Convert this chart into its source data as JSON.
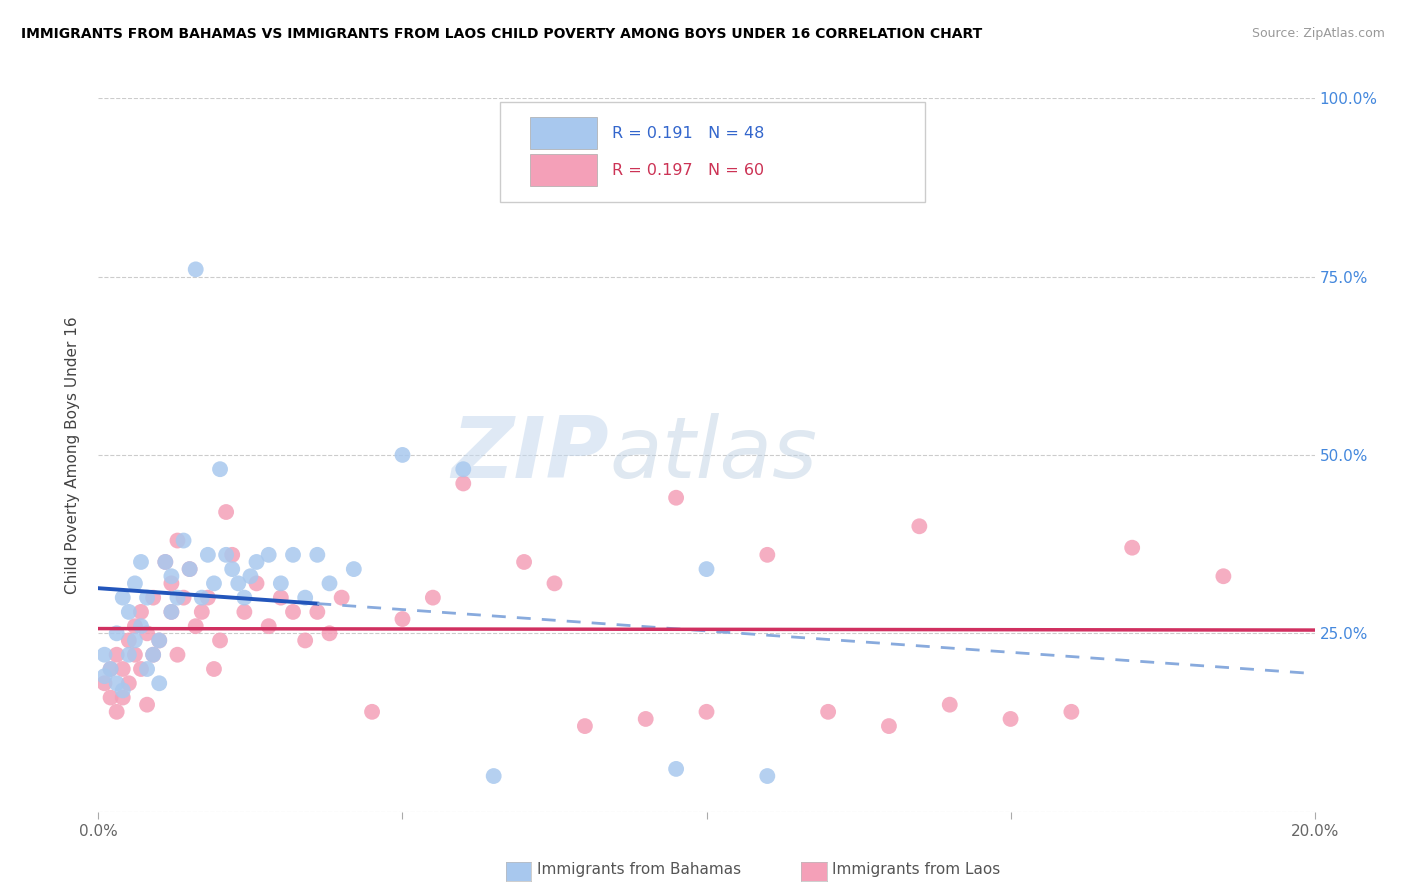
{
  "title": "IMMIGRANTS FROM BAHAMAS VS IMMIGRANTS FROM LAOS CHILD POVERTY AMONG BOYS UNDER 16 CORRELATION CHART",
  "source": "Source: ZipAtlas.com",
  "ylabel": "Child Poverty Among Boys Under 16",
  "x_min": 0.0,
  "x_max": 0.2,
  "y_min": 0.0,
  "y_max": 1.0,
  "x_ticks": [
    0.0,
    0.05,
    0.1,
    0.15,
    0.2
  ],
  "x_tick_labels": [
    "0.0%",
    "",
    "",
    "",
    "20.0%"
  ],
  "y_ticks": [
    0.0,
    0.25,
    0.5,
    0.75,
    1.0
  ],
  "right_y_tick_labels": [
    "",
    "25.0%",
    "50.0%",
    "75.0%",
    "100.0%"
  ],
  "bahamas_color": "#a8c8ee",
  "laos_color": "#f4a0b8",
  "bahamas_line_color": "#2255bb",
  "bahamas_dash_color": "#88aadd",
  "laos_line_color": "#d03060",
  "bahamas_R": 0.191,
  "bahamas_N": 48,
  "laos_R": 0.197,
  "laos_N": 60,
  "watermark_zip": "ZIP",
  "watermark_atlas": "atlas",
  "legend_label_bahamas": "Immigrants from Bahamas",
  "legend_label_laos": "Immigrants from Laos",
  "bahamas_x": [
    0.001,
    0.001,
    0.002,
    0.003,
    0.003,
    0.004,
    0.004,
    0.005,
    0.005,
    0.006,
    0.006,
    0.007,
    0.007,
    0.008,
    0.008,
    0.009,
    0.01,
    0.01,
    0.011,
    0.012,
    0.012,
    0.013,
    0.014,
    0.015,
    0.016,
    0.017,
    0.018,
    0.019,
    0.02,
    0.021,
    0.022,
    0.023,
    0.024,
    0.025,
    0.026,
    0.028,
    0.03,
    0.032,
    0.034,
    0.036,
    0.038,
    0.042,
    0.05,
    0.06,
    0.065,
    0.095,
    0.1,
    0.11
  ],
  "bahamas_y": [
    0.22,
    0.19,
    0.2,
    0.18,
    0.25,
    0.17,
    0.3,
    0.22,
    0.28,
    0.24,
    0.32,
    0.26,
    0.35,
    0.2,
    0.3,
    0.22,
    0.24,
    0.18,
    0.35,
    0.28,
    0.33,
    0.3,
    0.38,
    0.34,
    0.76,
    0.3,
    0.36,
    0.32,
    0.48,
    0.36,
    0.34,
    0.32,
    0.3,
    0.33,
    0.35,
    0.36,
    0.32,
    0.36,
    0.3,
    0.36,
    0.32,
    0.34,
    0.5,
    0.48,
    0.05,
    0.06,
    0.34,
    0.05
  ],
  "laos_x": [
    0.001,
    0.002,
    0.002,
    0.003,
    0.003,
    0.004,
    0.004,
    0.005,
    0.005,
    0.006,
    0.006,
    0.007,
    0.007,
    0.008,
    0.008,
    0.009,
    0.009,
    0.01,
    0.011,
    0.012,
    0.012,
    0.013,
    0.013,
    0.014,
    0.015,
    0.016,
    0.017,
    0.018,
    0.019,
    0.02,
    0.021,
    0.022,
    0.024,
    0.026,
    0.028,
    0.03,
    0.032,
    0.034,
    0.036,
    0.038,
    0.04,
    0.045,
    0.05,
    0.055,
    0.06,
    0.07,
    0.075,
    0.08,
    0.09,
    0.095,
    0.1,
    0.11,
    0.12,
    0.13,
    0.135,
    0.14,
    0.15,
    0.16,
    0.17,
    0.185
  ],
  "laos_y": [
    0.18,
    0.2,
    0.16,
    0.22,
    0.14,
    0.2,
    0.16,
    0.24,
    0.18,
    0.26,
    0.22,
    0.28,
    0.2,
    0.25,
    0.15,
    0.3,
    0.22,
    0.24,
    0.35,
    0.28,
    0.32,
    0.38,
    0.22,
    0.3,
    0.34,
    0.26,
    0.28,
    0.3,
    0.2,
    0.24,
    0.42,
    0.36,
    0.28,
    0.32,
    0.26,
    0.3,
    0.28,
    0.24,
    0.28,
    0.25,
    0.3,
    0.14,
    0.27,
    0.3,
    0.46,
    0.35,
    0.32,
    0.12,
    0.13,
    0.44,
    0.14,
    0.36,
    0.14,
    0.12,
    0.4,
    0.15,
    0.13,
    0.14,
    0.37,
    0.33
  ]
}
